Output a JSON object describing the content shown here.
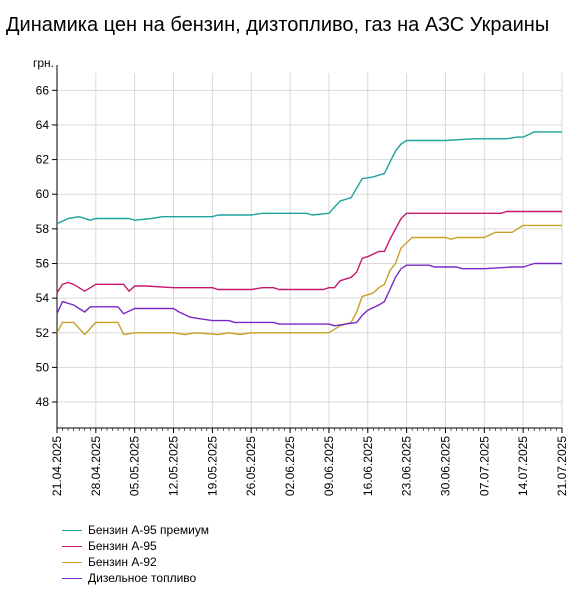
{
  "chart_data": {
    "type": "line",
    "title": "Динамика цен на бензин, дизтопливо, газ на АЗС Украины",
    "ylabel": "грн.",
    "xlabel": "",
    "ylim": [
      46.5,
      67
    ],
    "yticks": [
      48,
      50,
      52,
      54,
      56,
      58,
      60,
      62,
      64,
      66
    ],
    "xlim": [
      "2025-04-21",
      "2025-07-21"
    ],
    "xticks": [
      "21.04.2025",
      "28.04.2025",
      "05.05.2025",
      "12.05.2025",
      "19.05.2025",
      "26.05.2025",
      "02.06.2025",
      "09.06.2025",
      "16.06.2025",
      "23.06.2025",
      "30.06.2025",
      "07.07.2025",
      "14.07.2025",
      "21.07.2025"
    ],
    "grid": true,
    "legend_position": "bottom-left",
    "series": [
      {
        "name": "Бензин А-95 премиум",
        "color": "#1fa39a",
        "points": [
          [
            "2025-04-21",
            58.3
          ],
          [
            "2025-04-23",
            58.6
          ],
          [
            "2025-04-25",
            58.7
          ],
          [
            "2025-04-27",
            58.5
          ],
          [
            "2025-04-28",
            58.6
          ],
          [
            "2025-05-04",
            58.6
          ],
          [
            "2025-05-05",
            58.5
          ],
          [
            "2025-05-08",
            58.6
          ],
          [
            "2025-05-10",
            58.7
          ],
          [
            "2025-05-12",
            58.7
          ],
          [
            "2025-05-19",
            58.7
          ],
          [
            "2025-05-20",
            58.8
          ],
          [
            "2025-05-26",
            58.8
          ],
          [
            "2025-05-28",
            58.9
          ],
          [
            "2025-06-05",
            58.9
          ],
          [
            "2025-06-06",
            58.8
          ],
          [
            "2025-06-09",
            58.9
          ],
          [
            "2025-06-11",
            59.6
          ],
          [
            "2025-06-13",
            59.8
          ],
          [
            "2025-06-15",
            60.9
          ],
          [
            "2025-06-17",
            61.0
          ],
          [
            "2025-06-19",
            61.2
          ],
          [
            "2025-06-21",
            62.5
          ],
          [
            "2025-06-22",
            62.9
          ],
          [
            "2025-06-23",
            63.1
          ],
          [
            "2025-06-30",
            63.1
          ],
          [
            "2025-07-05",
            63.2
          ],
          [
            "2025-07-11",
            63.2
          ],
          [
            "2025-07-13",
            63.3
          ],
          [
            "2025-07-14",
            63.3
          ],
          [
            "2025-07-16",
            63.6
          ],
          [
            "2025-07-21",
            63.6
          ]
        ]
      },
      {
        "name": "Бензин А-95",
        "color": "#c8186d",
        "points": [
          [
            "2025-04-21",
            54.3
          ],
          [
            "2025-04-22",
            54.8
          ],
          [
            "2025-04-23",
            54.9
          ],
          [
            "2025-04-24",
            54.8
          ],
          [
            "2025-04-26",
            54.4
          ],
          [
            "2025-04-28",
            54.8
          ],
          [
            "2025-05-03",
            54.8
          ],
          [
            "2025-05-04",
            54.4
          ],
          [
            "2025-05-05",
            54.7
          ],
          [
            "2025-05-07",
            54.7
          ],
          [
            "2025-05-12",
            54.6
          ],
          [
            "2025-05-19",
            54.6
          ],
          [
            "2025-05-20",
            54.5
          ],
          [
            "2025-05-26",
            54.5
          ],
          [
            "2025-05-28",
            54.6
          ],
          [
            "2025-05-30",
            54.6
          ],
          [
            "2025-05-31",
            54.5
          ],
          [
            "2025-06-08",
            54.5
          ],
          [
            "2025-06-09",
            54.6
          ],
          [
            "2025-06-10",
            54.6
          ],
          [
            "2025-06-11",
            55.0
          ],
          [
            "2025-06-13",
            55.2
          ],
          [
            "2025-06-14",
            55.5
          ],
          [
            "2025-06-15",
            56.3
          ],
          [
            "2025-06-16",
            56.4
          ],
          [
            "2025-06-18",
            56.7
          ],
          [
            "2025-06-19",
            56.7
          ],
          [
            "2025-06-20",
            57.4
          ],
          [
            "2025-06-21",
            58.0
          ],
          [
            "2025-06-22",
            58.6
          ],
          [
            "2025-06-23",
            58.9
          ],
          [
            "2025-06-30",
            58.9
          ],
          [
            "2025-07-10",
            58.9
          ],
          [
            "2025-07-11",
            59.0
          ],
          [
            "2025-07-21",
            59.0
          ]
        ]
      },
      {
        "name": "Бензин А-92",
        "color": "#c8a028",
        "points": [
          [
            "2025-04-21",
            52.0
          ],
          [
            "2025-04-22",
            52.6
          ],
          [
            "2025-04-24",
            52.6
          ],
          [
            "2025-04-26",
            51.9
          ],
          [
            "2025-04-28",
            52.6
          ],
          [
            "2025-05-02",
            52.6
          ],
          [
            "2025-05-03",
            51.9
          ],
          [
            "2025-05-05",
            52.0
          ],
          [
            "2025-05-12",
            52.0
          ],
          [
            "2025-05-14",
            51.9
          ],
          [
            "2025-05-16",
            52.0
          ],
          [
            "2025-05-20",
            51.9
          ],
          [
            "2025-05-22",
            52.0
          ],
          [
            "2025-05-24",
            51.9
          ],
          [
            "2025-05-26",
            52.0
          ],
          [
            "2025-06-09",
            52.0
          ],
          [
            "2025-06-11",
            52.4
          ],
          [
            "2025-06-13",
            52.6
          ],
          [
            "2025-06-14",
            53.2
          ],
          [
            "2025-06-15",
            54.1
          ],
          [
            "2025-06-17",
            54.3
          ],
          [
            "2025-06-18",
            54.6
          ],
          [
            "2025-06-19",
            54.8
          ],
          [
            "2025-06-20",
            55.6
          ],
          [
            "2025-06-21",
            56.0
          ],
          [
            "2025-06-22",
            56.9
          ],
          [
            "2025-06-23",
            57.2
          ],
          [
            "2025-06-24",
            57.5
          ],
          [
            "2025-06-30",
            57.5
          ],
          [
            "2025-07-01",
            57.4
          ],
          [
            "2025-07-02",
            57.5
          ],
          [
            "2025-07-07",
            57.5
          ],
          [
            "2025-07-09",
            57.8
          ],
          [
            "2025-07-12",
            57.8
          ],
          [
            "2025-07-14",
            58.2
          ],
          [
            "2025-07-21",
            58.2
          ]
        ]
      },
      {
        "name": "Дизельное топливо",
        "color": "#7b28c8",
        "points": [
          [
            "2025-04-21",
            53.1
          ],
          [
            "2025-04-22",
            53.8
          ],
          [
            "2025-04-24",
            53.6
          ],
          [
            "2025-04-26",
            53.2
          ],
          [
            "2025-04-27",
            53.5
          ],
          [
            "2025-05-02",
            53.5
          ],
          [
            "2025-05-03",
            53.1
          ],
          [
            "2025-05-05",
            53.4
          ],
          [
            "2025-05-12",
            53.4
          ],
          [
            "2025-05-13",
            53.2
          ],
          [
            "2025-05-15",
            52.9
          ],
          [
            "2025-05-17",
            52.8
          ],
          [
            "2025-05-19",
            52.7
          ],
          [
            "2025-05-22",
            52.7
          ],
          [
            "2025-05-23",
            52.6
          ],
          [
            "2025-05-30",
            52.6
          ],
          [
            "2025-05-31",
            52.5
          ],
          [
            "2025-06-08",
            52.5
          ],
          [
            "2025-06-09",
            52.5
          ],
          [
            "2025-06-10",
            52.4
          ],
          [
            "2025-06-12",
            52.5
          ],
          [
            "2025-06-14",
            52.6
          ],
          [
            "2025-06-15",
            53.0
          ],
          [
            "2025-06-16",
            53.3
          ],
          [
            "2025-06-18",
            53.6
          ],
          [
            "2025-06-19",
            53.8
          ],
          [
            "2025-06-20",
            54.5
          ],
          [
            "2025-06-21",
            55.2
          ],
          [
            "2025-06-22",
            55.7
          ],
          [
            "2025-06-23",
            55.9
          ],
          [
            "2025-06-27",
            55.9
          ],
          [
            "2025-06-28",
            55.8
          ],
          [
            "2025-07-02",
            55.8
          ],
          [
            "2025-07-03",
            55.7
          ],
          [
            "2025-07-05",
            55.7
          ],
          [
            "2025-07-07",
            55.7
          ],
          [
            "2025-07-12",
            55.8
          ],
          [
            "2025-07-14",
            55.8
          ],
          [
            "2025-07-16",
            56.0
          ],
          [
            "2025-07-21",
            56.0
          ]
        ]
      }
    ]
  },
  "colors": {
    "grid": "#d9d9d9",
    "axis": "#000000"
  }
}
